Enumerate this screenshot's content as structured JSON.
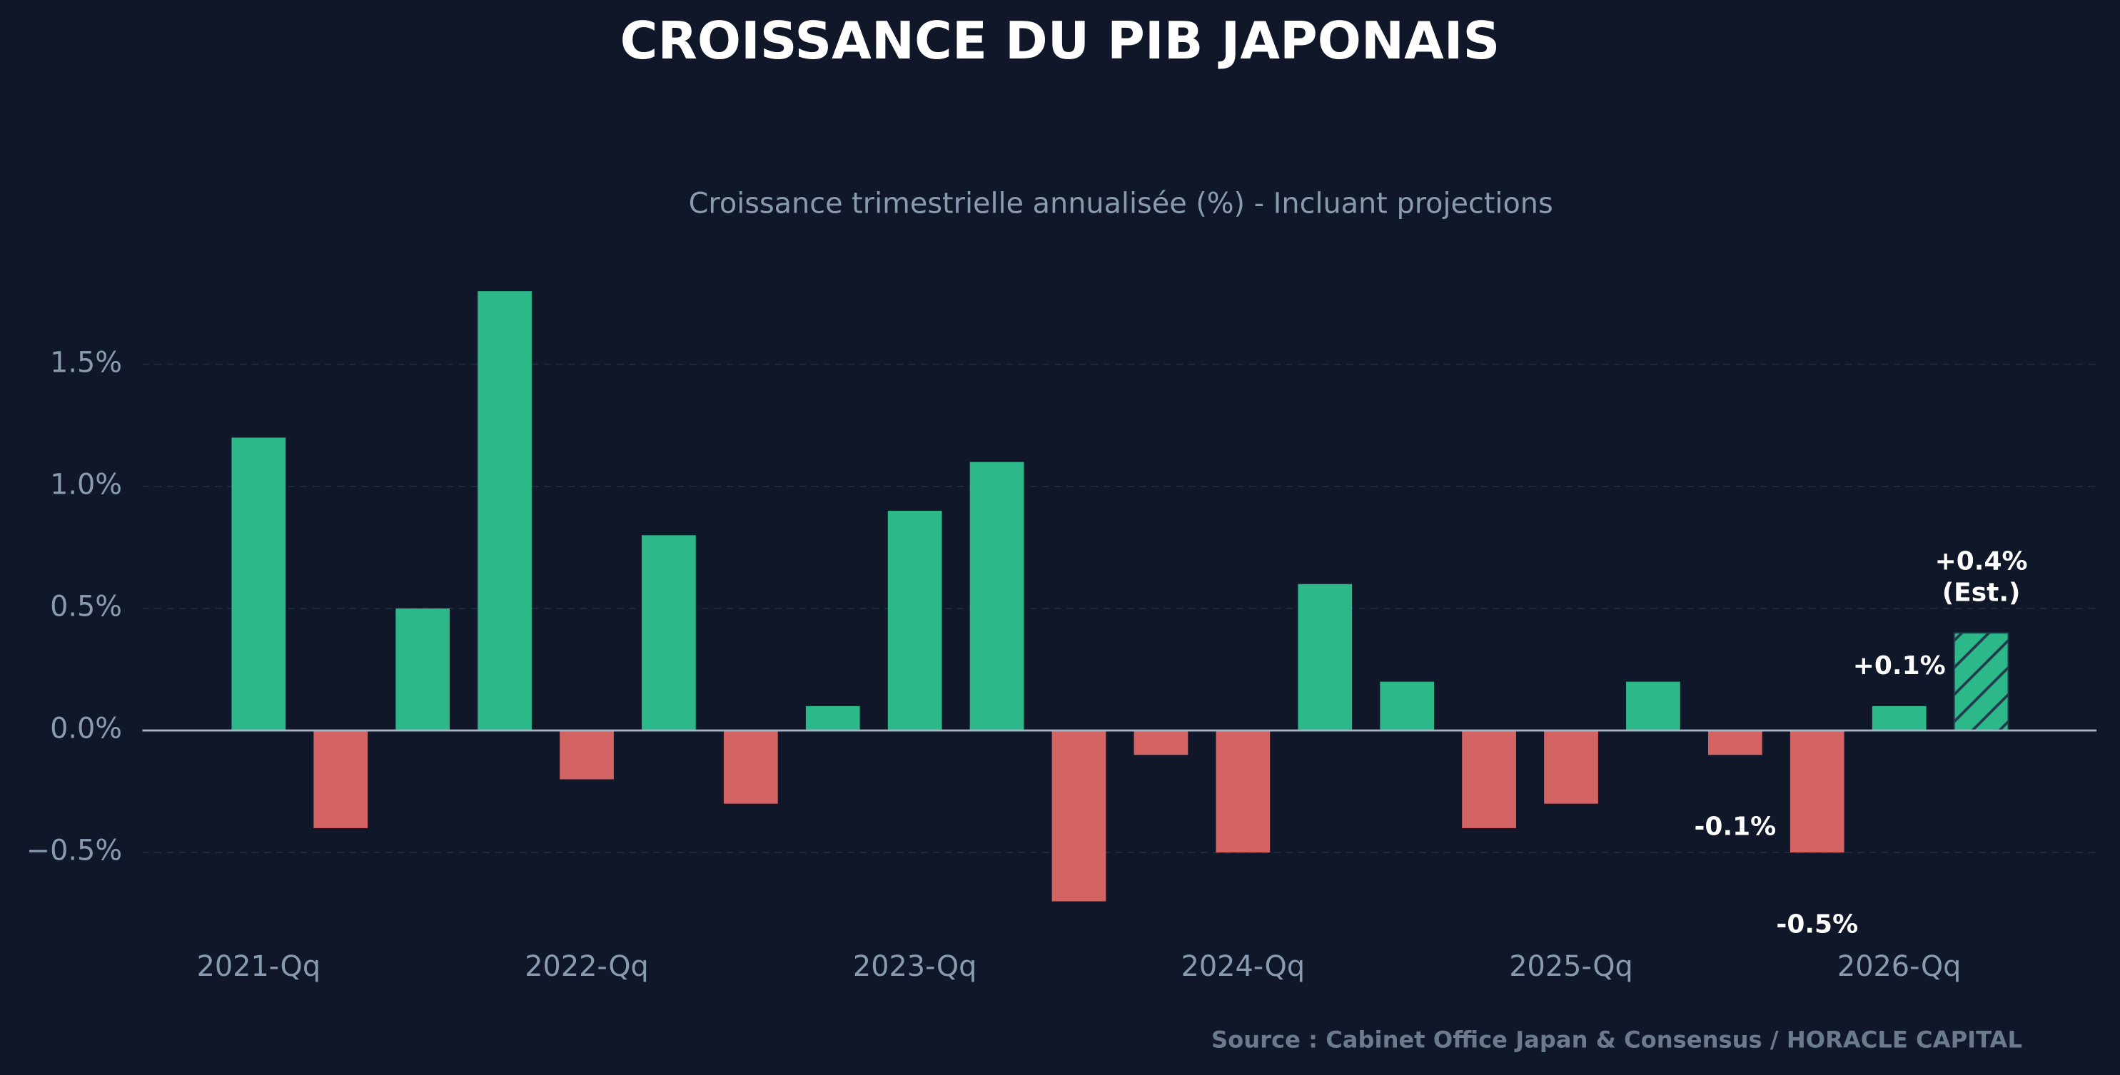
{
  "chart_data": {
    "type": "bar",
    "title": "CROISSANCE DU PIB JAPONAIS",
    "subtitle": "Croissance trimestrielle annualisée (%) - Incluant projections",
    "source": "Source : Cabinet Office Japan & Consensus / HORACLE CAPITAL",
    "categories": [
      "2021-Qq",
      null,
      null,
      null,
      "2022-Qq",
      null,
      null,
      null,
      "2023-Qq",
      null,
      null,
      null,
      "2024-Qq",
      null,
      null,
      null,
      "2025-Qq",
      null,
      null,
      null,
      "2026-Qq",
      null
    ],
    "values": [
      1.2,
      -0.4,
      0.5,
      1.8,
      -0.2,
      0.8,
      -0.3,
      0.1,
      0.9,
      1.1,
      -0.7,
      -0.1,
      -0.5,
      0.6,
      0.2,
      -0.4,
      -0.3,
      0.2,
      -0.1,
      -0.5,
      0.1,
      0.4
    ],
    "value_labels": [
      null,
      null,
      null,
      null,
      null,
      null,
      null,
      null,
      null,
      null,
      null,
      null,
      null,
      null,
      null,
      null,
      null,
      null,
      "-0.1%",
      "-0.5%",
      "+0.1%",
      "+0.4%"
    ],
    "estimate_label": "(Est.)",
    "hatch_indices": [
      21
    ],
    "positive_color": "#2db88a",
    "negative_color": "#d46464",
    "ylim": [
      -0.825,
      1.925
    ],
    "yticks": [
      {
        "value": -0.5,
        "label": "−0.5%"
      },
      {
        "value": 0,
        "label": "0.0%"
      },
      {
        "value": 0.5,
        "label": "0.5%"
      },
      {
        "value": 1.0,
        "label": "1.0%"
      },
      {
        "value": 1.5,
        "label": "1.5%"
      }
    ],
    "grid": true
  }
}
